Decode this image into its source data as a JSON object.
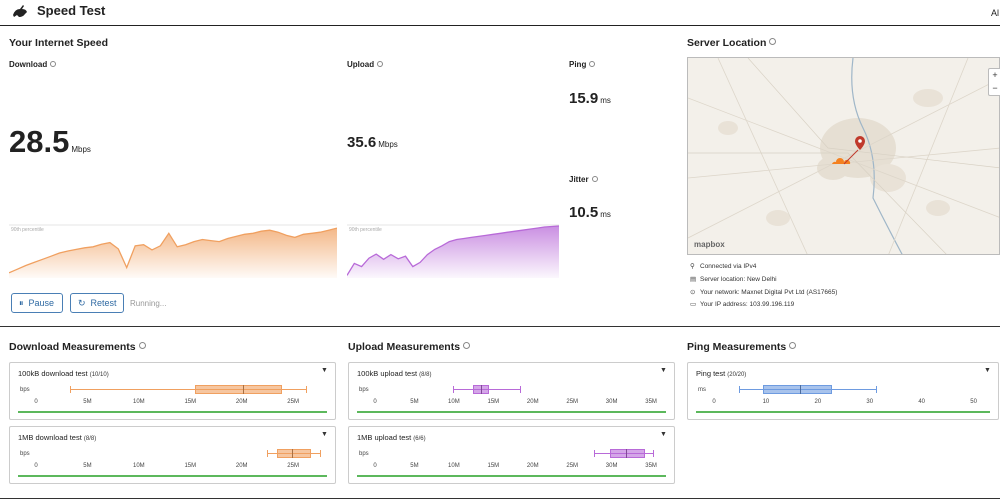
{
  "header": {
    "title": "Speed Test",
    "top_right": "Al"
  },
  "speed": {
    "title": "Your Internet Speed",
    "download": {
      "label": "Download",
      "value": "28.5",
      "unit": "Mbps",
      "percentile_label": "90th percentile"
    },
    "upload": {
      "label": "Upload",
      "value": "35.6",
      "unit": "Mbps",
      "percentile_label": "90th percentile"
    },
    "ping": {
      "label": "Ping",
      "value": "15.9",
      "unit": "ms"
    },
    "jitter": {
      "label": "Jitter",
      "value": "10.5",
      "unit": "ms"
    }
  },
  "controls": {
    "pause_label": "Pause",
    "retest_label": "Retest",
    "status": "Running..."
  },
  "server": {
    "title": "Server Location",
    "zoom_in": "+",
    "zoom_out": "−",
    "map_attribution": "mapbox",
    "connection": "Connected via IPv4",
    "location": "Server location: New Delhi",
    "network": "Your network: Maxnet Digital Pvt Ltd (AS17665)",
    "ip": "Your IP address: 103.99.196.119"
  },
  "colors": {
    "download": "#f0a060",
    "upload": "#b86ad8",
    "ping": "#6e9be0",
    "ok": "#5cb85c"
  },
  "chart_data": [
    {
      "type": "area",
      "title": "Download",
      "values": [
        0.1,
        0.17,
        0.24,
        0.3,
        0.36,
        0.42,
        0.48,
        0.52,
        0.55,
        0.58,
        0.6,
        0.65,
        0.68,
        0.56,
        0.2,
        0.62,
        0.64,
        0.54,
        0.62,
        0.86,
        0.6,
        0.64,
        0.7,
        0.74,
        0.72,
        0.7,
        0.76,
        0.8,
        0.84,
        0.86,
        0.9,
        0.92,
        0.88,
        0.82,
        0.78,
        0.84,
        0.86,
        0.88,
        0.92,
        0.96
      ]
    },
    {
      "type": "area",
      "title": "Upload",
      "values": [
        0.05,
        0.28,
        0.22,
        0.38,
        0.46,
        0.36,
        0.45,
        0.37,
        0.42,
        0.22,
        0.3,
        0.45,
        0.55,
        0.62,
        0.7,
        0.74,
        0.76,
        0.78,
        0.8,
        0.82,
        0.84,
        0.86,
        0.88,
        0.9,
        0.92,
        0.94,
        0.96,
        0.98,
        0.99,
        1.0
      ]
    }
  ],
  "download_measurements": {
    "title": "Download Measurements",
    "unit": "bps",
    "ticks": [
      "0",
      "5M",
      "10M",
      "15M",
      "20M",
      "25M"
    ],
    "tests": [
      {
        "name": "100kB download test",
        "count": "(10/10)",
        "min": 3.5,
        "q1": 16.5,
        "median": 21.5,
        "q3": 25.5,
        "max": 28
      },
      {
        "name": "1MB download test",
        "count": "(8/8)",
        "min": 24,
        "q1": 25,
        "median": 26.5,
        "q3": 28.5,
        "max": 29.5
      }
    ]
  },
  "upload_measurements": {
    "title": "Upload Measurements",
    "unit": "bps",
    "ticks": [
      "0",
      "5M",
      "10M",
      "15M",
      "20M",
      "25M",
      "30M",
      "35M"
    ],
    "tests": [
      {
        "name": "100kB upload test",
        "count": "(8/8)",
        "min": 10,
        "q1": 12.5,
        "median": 13.5,
        "q3": 14.5,
        "max": 18.5
      },
      {
        "name": "1MB upload test",
        "count": "(6/6)",
        "min": 28,
        "q1": 30,
        "median": 32,
        "q3": 34.5,
        "max": 35.5
      }
    ]
  },
  "ping_measurements": {
    "title": "Ping Measurements",
    "unit": "ms",
    "ticks": [
      "0",
      "10",
      "20",
      "30",
      "40",
      "50"
    ],
    "tests": [
      {
        "name": "Ping test",
        "count": "(20/20)",
        "min": 5,
        "q1": 10,
        "median": 17.5,
        "q3": 24,
        "max": 33
      }
    ]
  }
}
